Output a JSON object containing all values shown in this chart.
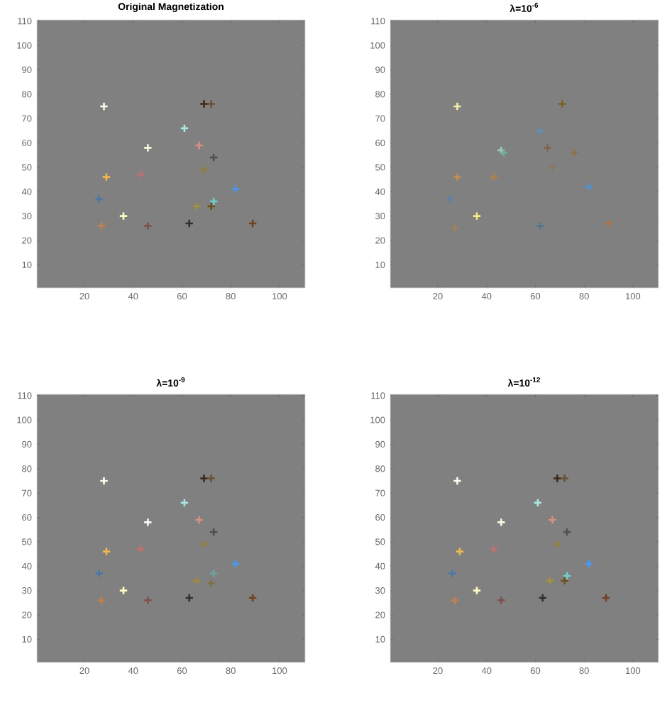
{
  "chart_data": [
    {
      "type": "scatter",
      "title": "Original Magnetization",
      "marker": "cross",
      "xlim": [
        0.5,
        110.5
      ],
      "ylim": [
        0.5,
        110.5
      ],
      "xticks": [
        20,
        40,
        60,
        80,
        100
      ],
      "yticks": [
        10,
        20,
        30,
        40,
        50,
        60,
        70,
        80,
        90,
        100,
        110
      ],
      "x": [
        28,
        69,
        72,
        61,
        67,
        46,
        73,
        69,
        29,
        43,
        26,
        82,
        73,
        66,
        72,
        36,
        27,
        46,
        63,
        89
      ],
      "values": [
        75,
        76,
        76,
        66,
        59,
        58,
        54,
        49,
        46,
        47,
        37,
        41,
        36,
        34,
        34,
        30,
        26,
        26,
        27,
        27
      ],
      "colors": [
        "#fffff0",
        "#3a2a1a",
        "#6a5030",
        "#a8e8e0",
        "#d89080",
        "#f8f8e0",
        "#505050",
        "#908040",
        "#f0b850",
        "#c07070",
        "#4878a8",
        "#4898f0",
        "#70d0d0",
        "#a09040",
        "#705020",
        "#ffffc0",
        "#c08050",
        "#805050",
        "#303030",
        "#704020"
      ]
    },
    {
      "type": "scatter",
      "title": "λ=10$^{-6}$",
      "marker": "cross",
      "xlim": [
        0.5,
        110.5
      ],
      "ylim": [
        0.5,
        110.5
      ],
      "xticks": [
        20,
        40,
        60,
        80,
        100
      ],
      "yticks": [
        10,
        20,
        30,
        40,
        50,
        60,
        70,
        80,
        90,
        100,
        110
      ],
      "x": [
        28,
        71,
        62,
        46,
        47,
        65,
        76,
        28,
        43,
        67,
        25,
        82,
        36,
        27,
        62,
        90
      ],
      "values": [
        75,
        76,
        65,
        57,
        56,
        58,
        56,
        46,
        46,
        50,
        37,
        42,
        30,
        25,
        26,
        27
      ],
      "colors": [
        "#f0f0a0",
        "#806020",
        "#6090b0",
        "#a0c8c0",
        "#70b0a0",
        "#806050",
        "#907050",
        "#c09050",
        "#b08050",
        "#887860",
        "#6080a0",
        "#5090d0",
        "#f0f080",
        "#a08060",
        "#507890",
        "#b07040"
      ]
    },
    {
      "type": "scatter",
      "title": "λ=10$^{-9}$",
      "marker": "cross",
      "xlim": [
        0.5,
        110.5
      ],
      "ylim": [
        0.5,
        110.5
      ],
      "xticks": [
        20,
        40,
        60,
        80,
        100
      ],
      "yticks": [
        10,
        20,
        30,
        40,
        50,
        60,
        70,
        80,
        90,
        100,
        110
      ],
      "x": [
        28,
        69,
        72,
        61,
        67,
        46,
        73,
        69,
        29,
        43,
        26,
        82,
        73,
        66,
        72,
        36,
        27,
        46,
        63,
        89
      ],
      "values": [
        75,
        76,
        76,
        66,
        59,
        58,
        54,
        49,
        46,
        47,
        37,
        41,
        37,
        34,
        33,
        30,
        26,
        26,
        27,
        27
      ],
      "colors": [
        "#fffff0",
        "#3a2a1a",
        "#6a5030",
        "#a8e8e0",
        "#d89080",
        "#f8f8f8",
        "#505050",
        "#908040",
        "#f0b850",
        "#c07070",
        "#4878a8",
        "#4898f0",
        "#70a0a0",
        "#a08840",
        "#807040",
        "#ffffc0",
        "#c08050",
        "#805050",
        "#303030",
        "#704020"
      ]
    },
    {
      "type": "scatter",
      "title": "λ=10$^{-12}$",
      "marker": "cross",
      "xlim": [
        0.5,
        110.5
      ],
      "ylim": [
        0.5,
        110.5
      ],
      "xticks": [
        20,
        40,
        60,
        80,
        100
      ],
      "yticks": [
        10,
        20,
        30,
        40,
        50,
        60,
        70,
        80,
        90,
        100,
        110
      ],
      "x": [
        28,
        69,
        72,
        61,
        67,
        46,
        73,
        69,
        29,
        43,
        26,
        82,
        73,
        66,
        72,
        36,
        27,
        46,
        63,
        89
      ],
      "values": [
        75,
        76,
        76,
        66,
        59,
        58,
        54,
        49,
        46,
        47,
        37,
        41,
        36,
        34,
        34,
        30,
        26,
        26,
        27,
        27
      ],
      "colors": [
        "#fffff0",
        "#3a2a1a",
        "#6a5030",
        "#a8e8e0",
        "#d89080",
        "#f8f8e0",
        "#505050",
        "#908040",
        "#f0b850",
        "#c07070",
        "#4878a8",
        "#4898f0",
        "#70d0d0",
        "#a09040",
        "#705020",
        "#ffffc0",
        "#c08050",
        "#805050",
        "#303030",
        "#704020"
      ]
    }
  ]
}
